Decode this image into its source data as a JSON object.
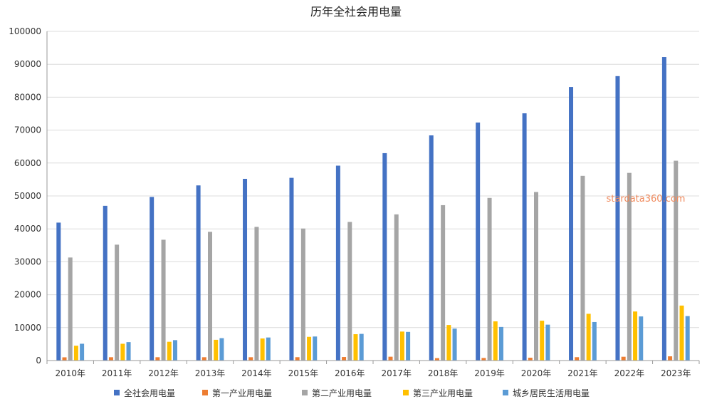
{
  "chart_data": {
    "type": "bar",
    "title": "历年全社会用电量",
    "categories": [
      "2010年",
      "2011年",
      "2012年",
      "2013年",
      "2014年",
      "2015年",
      "2016年",
      "2017年",
      "2018年",
      "2019年",
      "2020年",
      "2021年",
      "2022年",
      "2023年"
    ],
    "ylim": [
      0,
      100000
    ],
    "yticks": [
      0,
      10000,
      20000,
      30000,
      40000,
      50000,
      60000,
      70000,
      80000,
      90000,
      100000
    ],
    "grid": true,
    "legend_position": "bottom",
    "series": [
      {
        "name": "全社会用电量",
        "color": "#4472c4",
        "values": [
          41900,
          47000,
          49700,
          53200,
          55200,
          55500,
          59200,
          63000,
          68400,
          72300,
          75100,
          83100,
          86400,
          92200
        ]
      },
      {
        "name": "第一产业用电量",
        "color": "#ed7d31",
        "values": [
          980,
          1010,
          1010,
          1010,
          1010,
          1020,
          1070,
          1160,
          730,
          780,
          860,
          1020,
          1150,
          1280
        ]
      },
      {
        "name": "第二产业用电量",
        "color": "#a5a5a5",
        "values": [
          31300,
          35200,
          36700,
          39100,
          40600,
          40100,
          42100,
          44400,
          47200,
          49400,
          51200,
          56100,
          57000,
          60700
        ]
      },
      {
        "name": "第三产业用电量",
        "color": "#ffc000",
        "values": [
          4500,
          5100,
          5700,
          6300,
          6700,
          7200,
          8000,
          8800,
          10800,
          11900,
          12100,
          14200,
          14900,
          16700
        ]
      },
      {
        "name": "城乡居民生活用电量",
        "color": "#5b9bd5",
        "values": [
          5100,
          5600,
          6200,
          6800,
          7000,
          7300,
          8100,
          8700,
          9700,
          10200,
          10900,
          11700,
          13400,
          13500
        ]
      }
    ]
  },
  "watermark": "stardata360.com"
}
